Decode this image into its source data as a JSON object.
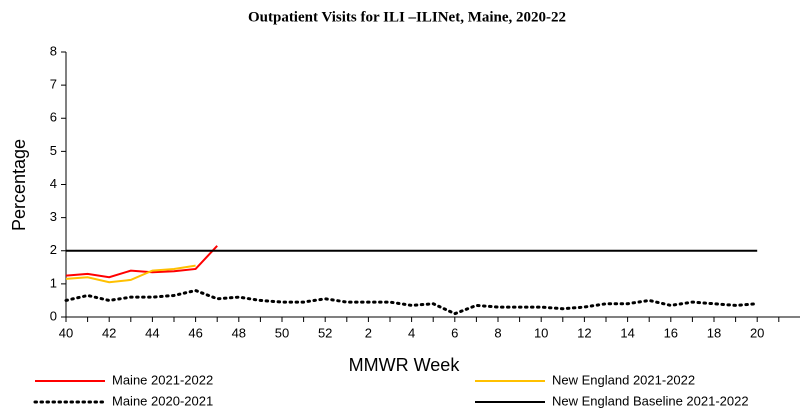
{
  "chart_data": {
    "type": "line",
    "title": "Outpatient Visits for ILI –ILINet, Maine, 2020-22",
    "x_label": "MMWR Week",
    "y_label": "Percentage",
    "categories": [
      "40",
      null,
      "42",
      null,
      "44",
      null,
      "46",
      null,
      "48",
      null,
      "50",
      null,
      "52",
      null,
      "2",
      null,
      "4",
      null,
      "6",
      null,
      "8",
      null,
      "10",
      null,
      "12",
      null,
      "14",
      null,
      "16",
      null,
      "18",
      null,
      "20",
      null
    ],
    "ylim": [
      0,
      8
    ],
    "yticks": [
      0,
      1,
      2,
      3,
      4,
      5,
      6,
      7,
      8
    ],
    "series": [
      {
        "name": "Maine 2021-2022",
        "color": "#ff0000",
        "style": "solid",
        "values": [
          1.25,
          1.3,
          1.2,
          1.4,
          1.35,
          1.38,
          1.45,
          2.15,
          null,
          null,
          null,
          null,
          null,
          null,
          null,
          null,
          null,
          null,
          null,
          null,
          null,
          null,
          null,
          null,
          null,
          null,
          null,
          null,
          null,
          null,
          null,
          null,
          null,
          null
        ]
      },
      {
        "name": "New England 2021-2022",
        "color": "#ffc000",
        "style": "solid",
        "values": [
          1.15,
          1.2,
          1.05,
          1.12,
          1.4,
          1.45,
          1.55,
          null,
          null,
          null,
          null,
          null,
          null,
          null,
          null,
          null,
          null,
          null,
          null,
          null,
          null,
          null,
          null,
          null,
          null,
          null,
          null,
          null,
          null,
          null,
          null,
          null,
          null,
          null
        ]
      },
      {
        "name": "Maine 2020-2021",
        "color": "#000000",
        "style": "dotted",
        "values": [
          0.5,
          0.65,
          0.5,
          0.6,
          0.6,
          0.65,
          0.8,
          0.55,
          0.6,
          0.5,
          0.45,
          0.45,
          0.55,
          0.45,
          0.45,
          0.45,
          0.35,
          0.4,
          0.1,
          0.35,
          0.3,
          0.3,
          0.3,
          0.25,
          0.3,
          0.4,
          0.4,
          0.5,
          0.35,
          0.45,
          0.4,
          0.35,
          0.4,
          null
        ]
      },
      {
        "name": "New England Baseline 2021-2022",
        "color": "#000000",
        "style": "solid",
        "values": [
          2,
          2,
          2,
          2,
          2,
          2,
          2,
          2,
          2,
          2,
          2,
          2,
          2,
          2,
          2,
          2,
          2,
          2,
          2,
          2,
          2,
          2,
          2,
          2,
          2,
          2,
          2,
          2,
          2,
          2,
          2,
          2,
          2,
          null
        ]
      }
    ]
  }
}
